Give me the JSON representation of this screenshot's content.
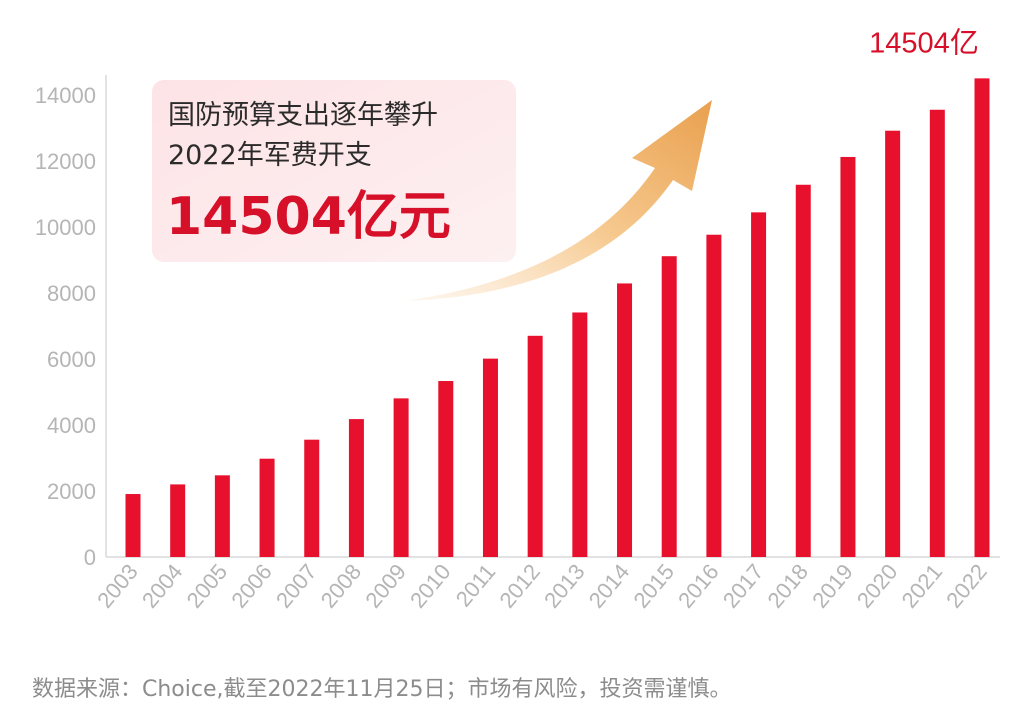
{
  "chart_data": {
    "type": "bar",
    "categories": [
      "2003",
      "2004",
      "2005",
      "2006",
      "2007",
      "2008",
      "2009",
      "2010",
      "2011",
      "2012",
      "2013",
      "2014",
      "2015",
      "2016",
      "2017",
      "2018",
      "2019",
      "2020",
      "2021",
      "2022"
    ],
    "values": [
      1908,
      2200,
      2475,
      2979,
      3555,
      4179,
      4807,
      5333,
      6011,
      6703,
      7410,
      8290,
      9115,
      9766,
      10444,
      11280,
      12122,
      12918,
      13553,
      14504
    ],
    "ylim": [
      0,
      14000
    ],
    "yticks": [
      0,
      2000,
      4000,
      6000,
      8000,
      10000,
      12000,
      14000
    ],
    "bar_color": "#e8112d",
    "grid": false,
    "value_label": "14504亿",
    "callout": {
      "line1": "国防预算支出逐年攀升",
      "line2": "2022年军费开支",
      "highlight": "14504亿元"
    },
    "source_note": "数据来源：Choice,截至2022年11月25日；市场有风险，投资需谨慎。"
  }
}
